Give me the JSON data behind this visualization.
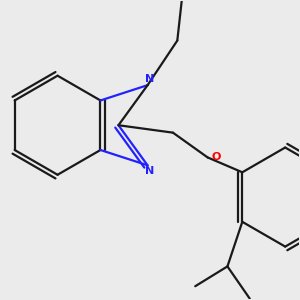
{
  "bg_color": "#ebebeb",
  "line_color": "#1a1a1a",
  "N_color": "#2222ff",
  "O_color": "#ff0000",
  "line_width": 1.6,
  "figsize": [
    3.0,
    3.0
  ],
  "dpi": 100,
  "xlim": [
    -2.5,
    3.5
  ],
  "ylim": [
    -3.5,
    2.5
  ]
}
